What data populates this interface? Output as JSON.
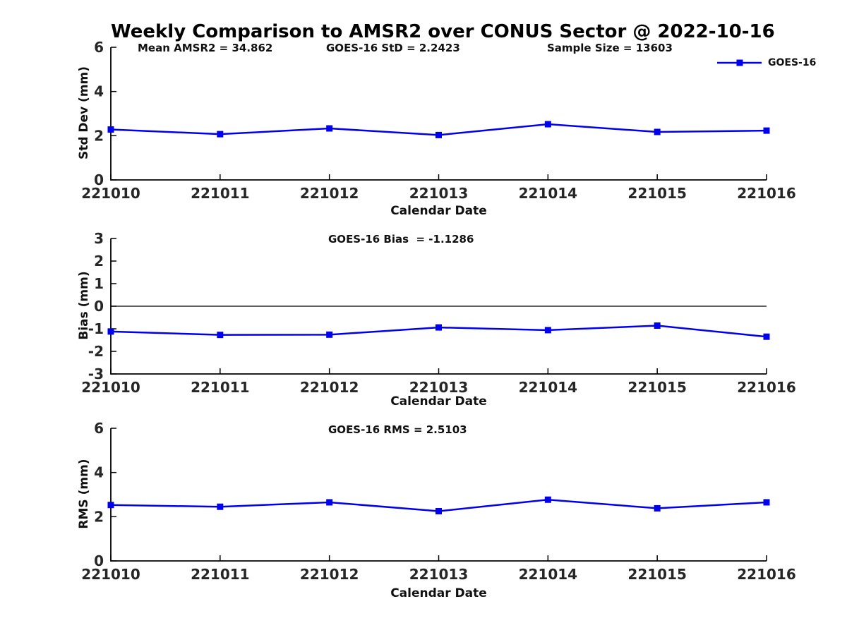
{
  "title": "Weekly Comparison to AMSR2 over CONUS Sector @ 2022-10-16",
  "annotations": {
    "mean_amsr2": "Mean AMSR2 = 34.862",
    "goes16_std": "GOES-16 StD = 2.2423",
    "sample_size": "Sample Size = 13603"
  },
  "legend": {
    "label": "GOES-16",
    "position": "top-right",
    "marker": "square"
  },
  "colors": {
    "line": "#0000EE",
    "axis": "#000000",
    "tick_text": "#262626",
    "background": "#ffffff"
  },
  "chart_data": [
    {
      "type": "line",
      "title": "",
      "ylabel": "Std Dev (mm)",
      "xlabel": "Calendar Date",
      "categories": [
        "221010",
        "221011",
        "221012",
        "221013",
        "221014",
        "221015",
        "221016"
      ],
      "series": [
        {
          "name": "GOES-16",
          "values": [
            2.28,
            2.07,
            2.33,
            2.03,
            2.52,
            2.17,
            2.23
          ]
        }
      ],
      "ylim": [
        0,
        6
      ],
      "yticks": [
        0,
        2,
        4,
        6
      ],
      "grid": false,
      "zero_line": false,
      "legend_position": "top-right"
    },
    {
      "type": "line",
      "title": "GOES-16 Bias  = -1.1286",
      "ylabel": "Bias (mm)",
      "xlabel": "Calendar Date",
      "categories": [
        "221010",
        "221011",
        "221012",
        "221013",
        "221014",
        "221015",
        "221016"
      ],
      "series": [
        {
          "name": "GOES-16",
          "values": [
            -1.12,
            -1.27,
            -1.26,
            -0.94,
            -1.06,
            -0.86,
            -1.35
          ]
        }
      ],
      "ylim": [
        -3,
        3
      ],
      "yticks": [
        -3,
        -2,
        -1,
        0,
        1,
        2,
        3
      ],
      "grid": false,
      "zero_line": true,
      "legend_position": "none"
    },
    {
      "type": "line",
      "title": "GOES-16 RMS = 2.5103",
      "ylabel": "RMS (mm)",
      "xlabel": "Calendar Date",
      "categories": [
        "221010",
        "221011",
        "221012",
        "221013",
        "221014",
        "221015",
        "221016"
      ],
      "series": [
        {
          "name": "GOES-16",
          "values": [
            2.53,
            2.45,
            2.65,
            2.25,
            2.77,
            2.38,
            2.65
          ]
        }
      ],
      "ylim": [
        0,
        6
      ],
      "yticks": [
        0,
        2,
        4,
        6
      ],
      "grid": false,
      "zero_line": false,
      "legend_position": "none"
    }
  ]
}
